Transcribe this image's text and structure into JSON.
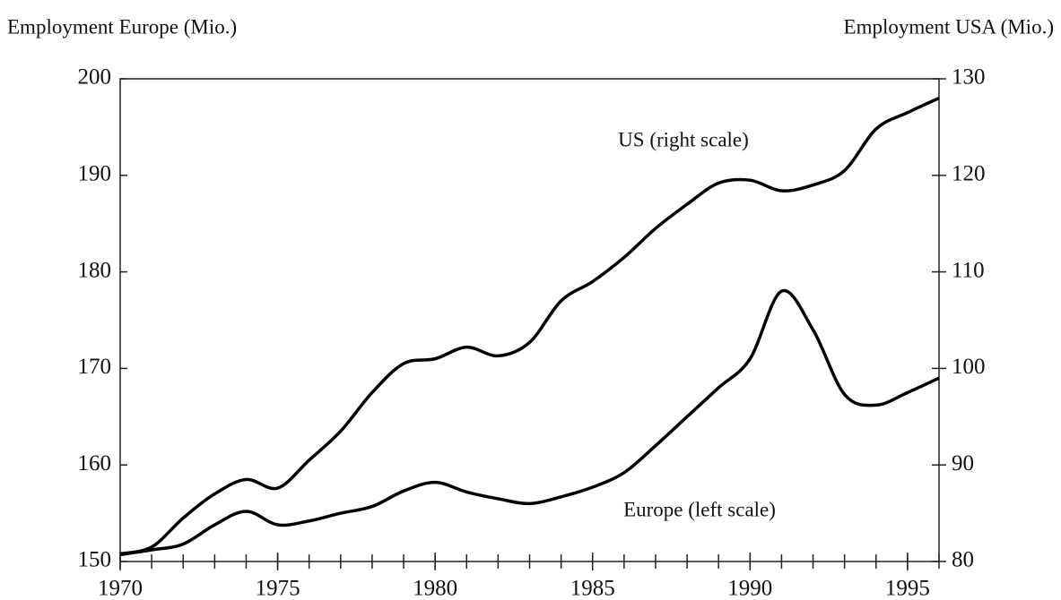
{
  "chart_data": {
    "type": "line",
    "y_title": "Employment Europe (Mio.)",
    "y2_title": "Employment USA (Mio.)",
    "annotations": [
      "US (right scale)",
      "Europe (left scale)"
    ],
    "x": [
      1970,
      1971,
      1972,
      1973,
      1974,
      1975,
      1976,
      1977,
      1978,
      1979,
      1980,
      1981,
      1982,
      1983,
      1984,
      1985,
      1986,
      1987,
      1988,
      1989,
      1990,
      1991,
      1992,
      1993,
      1994,
      1995,
      1996
    ],
    "xlim": [
      1970,
      1996
    ],
    "xticks": [
      1970,
      1975,
      1980,
      1985,
      1990,
      1995
    ],
    "ylim": [
      150,
      200
    ],
    "yticks": [
      150,
      160,
      170,
      180,
      190,
      200
    ],
    "y2lim": [
      80,
      130
    ],
    "y2ticks": [
      80,
      90,
      100,
      110,
      120,
      130
    ],
    "series": [
      {
        "name": "Europe",
        "color": "#000000",
        "values": [
          150.7,
          151.2,
          151.8,
          153.8,
          155.2,
          153.8,
          154.2,
          155,
          155.7,
          157.3,
          158.2,
          157.2,
          156.5,
          156,
          156.7,
          157.7,
          159.2,
          162,
          165,
          168,
          171,
          178,
          174,
          167.3,
          166.2,
          167.5,
          169
        ]
      },
      {
        "name": "US",
        "color": "#000000",
        "axis": "y2",
        "values": [
          80.8,
          81.5,
          84.5,
          87,
          88.5,
          87.6,
          90.5,
          93.5,
          97.5,
          100.5,
          101,
          102.2,
          101.3,
          102.7,
          107,
          109,
          111.5,
          114.5,
          117,
          119.2,
          119.5,
          118.4,
          119,
          120.5,
          124.8,
          126.5,
          128
        ]
      }
    ]
  }
}
